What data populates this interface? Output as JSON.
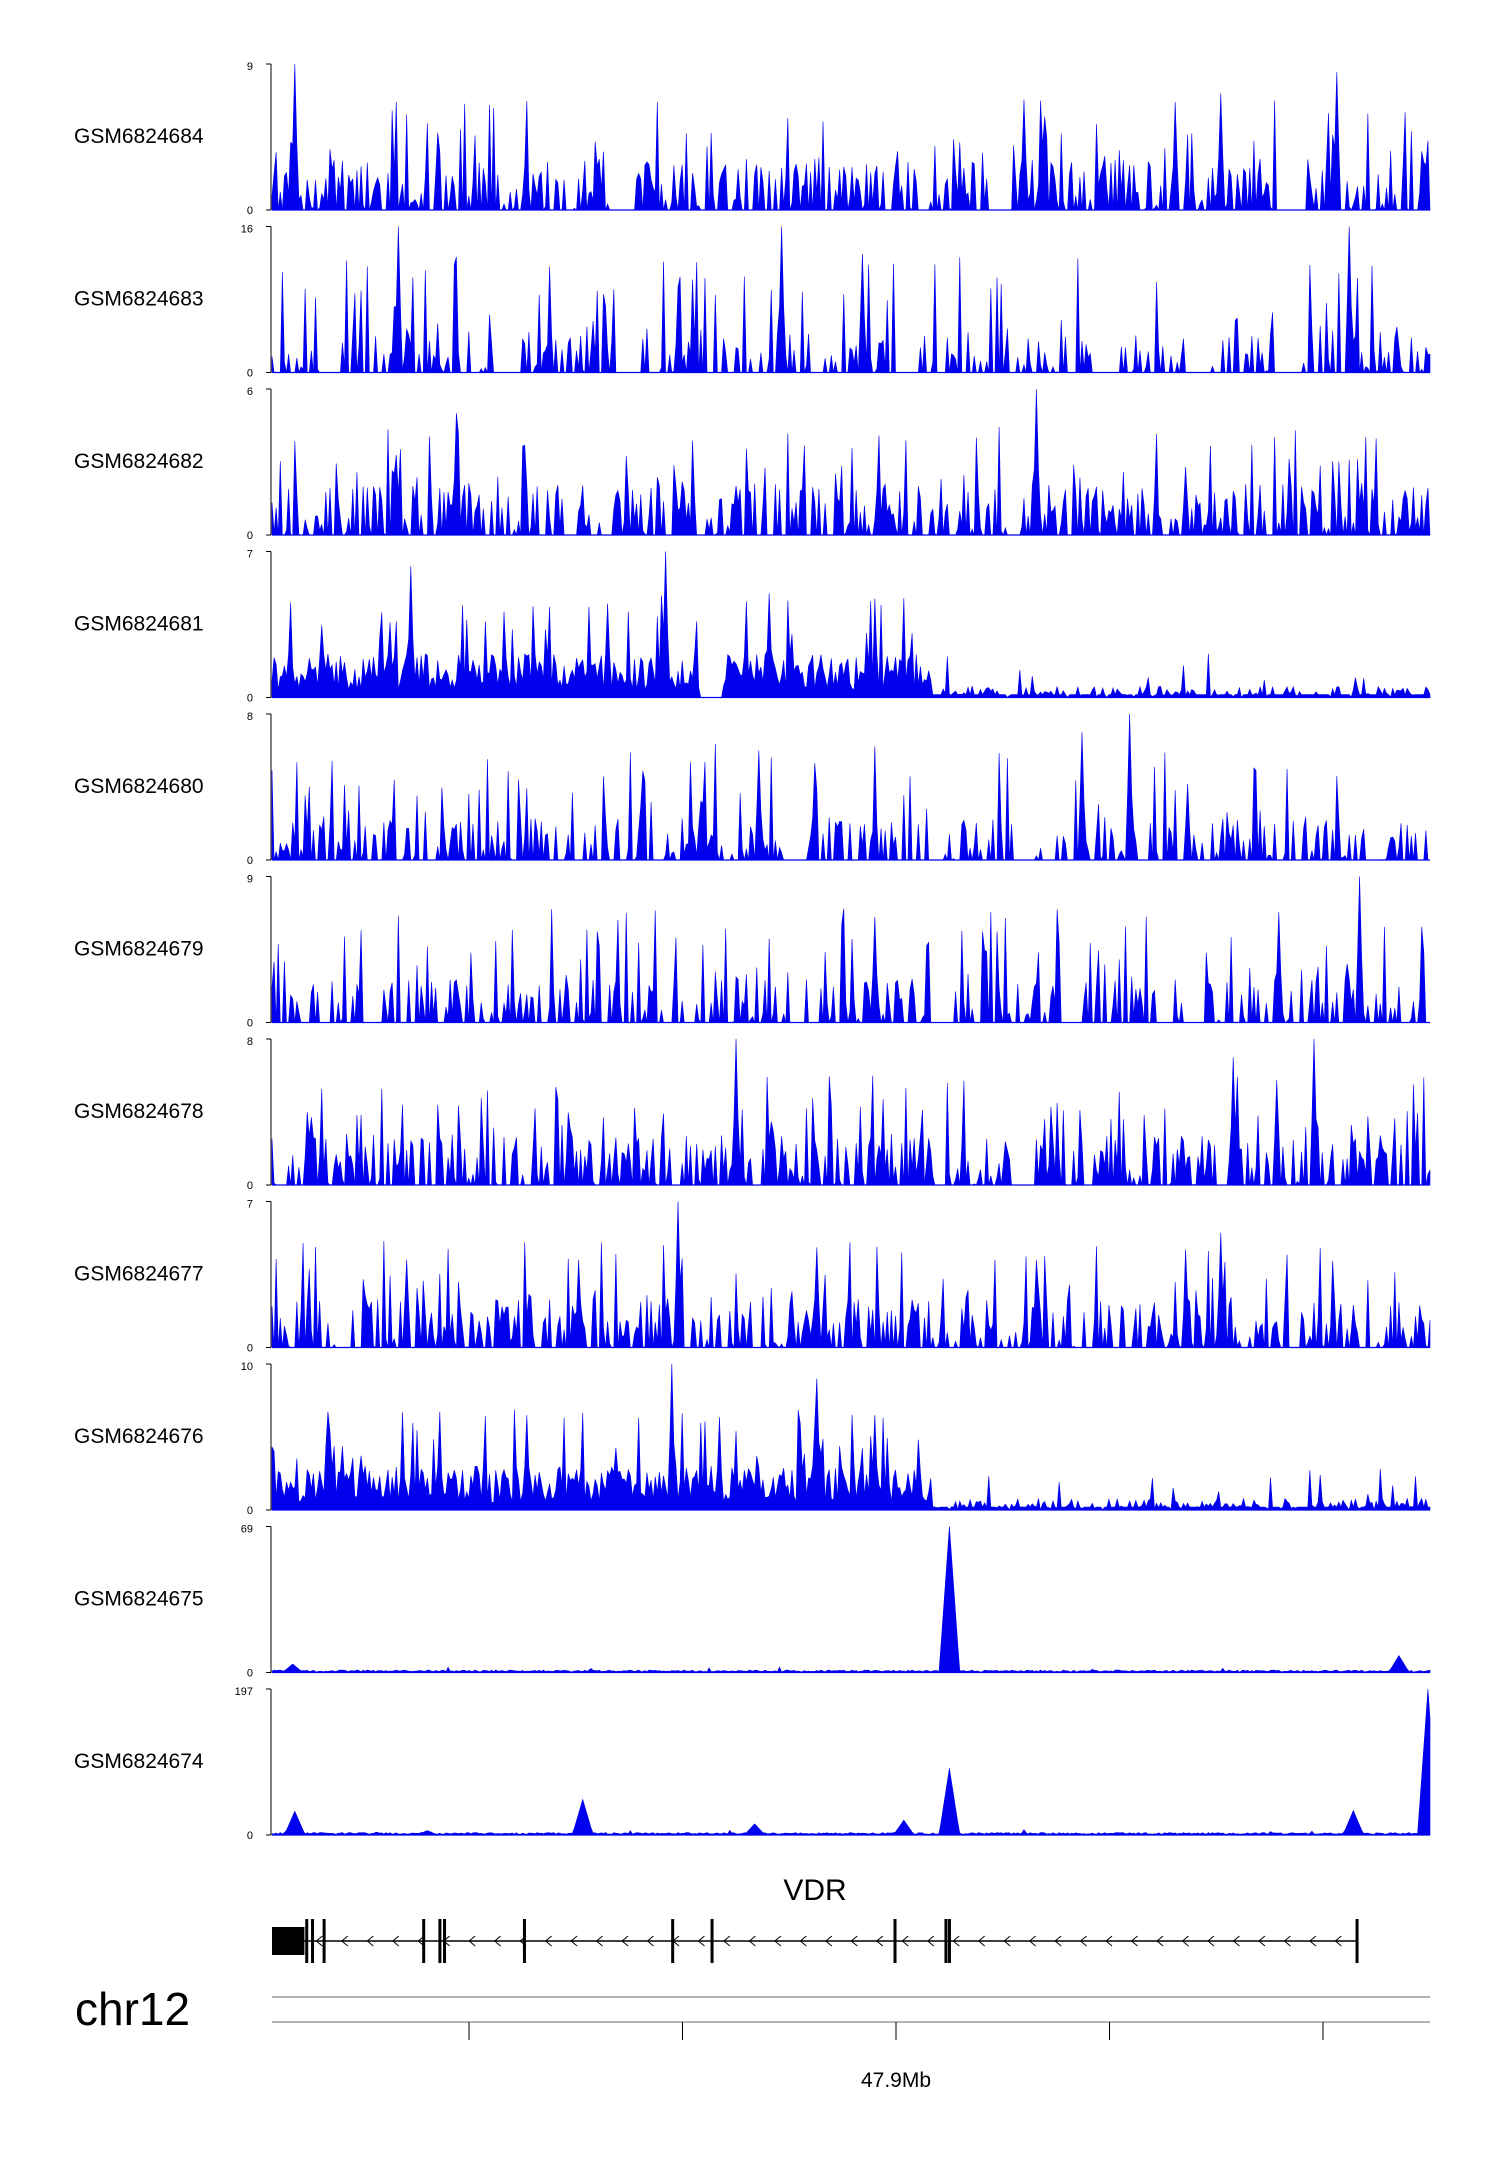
{
  "colors": {
    "signal": "#0000ee",
    "axis": "#000000",
    "gene": "#000000"
  },
  "chart_data": {
    "type": "area",
    "title": "",
    "chromosome": "chr12",
    "gene": {
      "name": "VDR",
      "strand": "-"
    },
    "x_axis": {
      "label": "47.9Mb",
      "tick_count": 5
    },
    "tracks": [
      {
        "name": "GSM6824684",
        "ymin": 0,
        "ymax": 9,
        "ymin_label": "0",
        "ymax_label": "9",
        "profile": "noisy",
        "seed": 11,
        "peaks": [
          [
            0.02,
            9
          ],
          [
            0.92,
            8.5
          ],
          [
            0.65,
            6.8
          ],
          [
            0.82,
            7.2
          ]
        ],
        "gaps": [
          0.3,
          0.63,
          0.88
        ]
      },
      {
        "name": "GSM6824683",
        "ymin": 0,
        "ymax": 16,
        "ymin_label": "0",
        "ymax_label": "16",
        "profile": "sparse",
        "seed": 23,
        "peaks": [
          [
            0.11,
            16
          ],
          [
            0.44,
            16
          ],
          [
            0.93,
            16
          ],
          [
            0.51,
            13
          ]
        ],
        "gaps": [
          0.05,
          0.2,
          0.31,
          0.55,
          0.72,
          0.8,
          0.88
        ]
      },
      {
        "name": "GSM6824682",
        "ymin": 0,
        "ymax": 6,
        "ymin_label": "0",
        "ymax_label": "6",
        "profile": "noisy",
        "seed": 37,
        "peaks": [
          [
            0.66,
            6
          ],
          [
            0.16,
            5
          ]
        ],
        "gaps": []
      },
      {
        "name": "GSM6824681",
        "ymin": 0,
        "ymax": 7,
        "ymin_label": "0",
        "ymax_label": "7",
        "profile": "halfHigh",
        "seed": 41,
        "peaks": [
          [
            0.34,
            7
          ],
          [
            0.12,
            6.3
          ],
          [
            0.43,
            5
          ],
          [
            0.29,
            4.5
          ]
        ],
        "gaps": [
          0.38
        ]
      },
      {
        "name": "GSM6824680",
        "ymin": 0,
        "ymax": 8,
        "ymin_label": "0",
        "ymax_label": "8",
        "profile": "sparse",
        "seed": 53,
        "peaks": [
          [
            0.74,
            8
          ],
          [
            0.7,
            7
          ],
          [
            0.42,
            6
          ]
        ],
        "gaps": [
          0.45,
          0.65
        ]
      },
      {
        "name": "GSM6824679",
        "ymin": 0,
        "ymax": 9,
        "ymin_label": "0",
        "ymax_label": "9",
        "profile": "sparse",
        "seed": 61,
        "peaks": [
          [
            0.94,
            9
          ],
          [
            0.52,
            6.5
          ],
          [
            0.87,
            6.8
          ]
        ],
        "gaps": [
          0.58,
          0.69
        ]
      },
      {
        "name": "GSM6824678",
        "ymin": 0,
        "ymax": 8,
        "ymin_label": "0",
        "ymax_label": "8",
        "profile": "noisy",
        "seed": 73,
        "peaks": [
          [
            0.4,
            8
          ],
          [
            0.9,
            8
          ],
          [
            0.83,
            7
          ]
        ],
        "gaps": [
          0.65
        ]
      },
      {
        "name": "GSM6824677",
        "ymin": 0,
        "ymax": 7,
        "ymin_label": "0",
        "ymax_label": "7",
        "profile": "noisy",
        "seed": 83,
        "peaks": [
          [
            0.35,
            7
          ],
          [
            0.82,
            5.5
          ],
          [
            0.47,
            4.8
          ]
        ],
        "gaps": []
      },
      {
        "name": "GSM6824676",
        "ymin": 0,
        "ymax": 10,
        "ymin_label": "0",
        "ymax_label": "10",
        "profile": "halfHigh",
        "seed": 97,
        "peaks": [
          [
            0.345,
            10
          ],
          [
            0.47,
            9
          ],
          [
            0.52,
            6.5
          ],
          [
            0.22,
            6.5
          ]
        ],
        "gaps": []
      },
      {
        "name": "GSM6824675",
        "ymin": 0,
        "ymax": 69,
        "ymin_label": "0",
        "ymax_label": "69",
        "profile": "flat",
        "seed": 101,
        "peaks": [
          [
            0.585,
            69
          ],
          [
            0.973,
            8
          ],
          [
            0.017,
            4
          ]
        ],
        "gaps": []
      },
      {
        "name": "GSM6824674",
        "ymin": 0,
        "ymax": 197,
        "ymin_label": "0",
        "ymax_label": "197",
        "profile": "flat",
        "seed": 113,
        "peaks": [
          [
            0.999,
            197
          ],
          [
            0.585,
            90
          ],
          [
            0.268,
            48
          ],
          [
            0.934,
            33
          ],
          [
            0.02,
            32
          ],
          [
            0.545,
            20
          ],
          [
            0.417,
            15
          ],
          [
            0.135,
            6
          ]
        ],
        "gaps": []
      }
    ],
    "gene_model": {
      "start": 0.0,
      "end": 0.937,
      "exons": [
        0.03,
        0.035,
        0.045,
        0.131,
        0.145,
        0.149,
        0.218,
        0.346,
        0.38,
        0.538,
        0.582,
        0.585,
        0.937
      ]
    }
  }
}
